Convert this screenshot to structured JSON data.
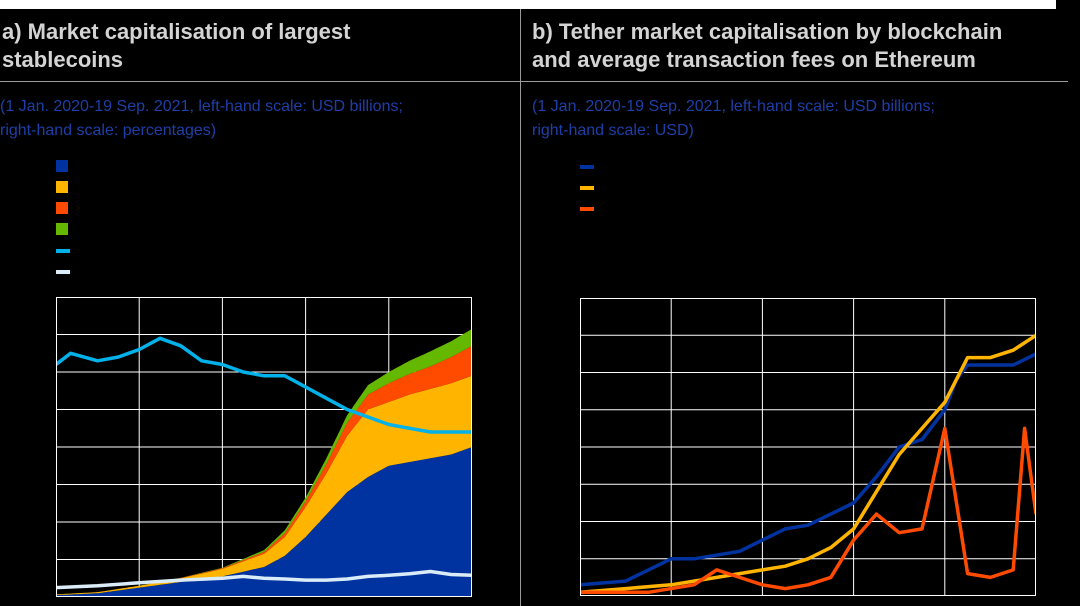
{
  "panels": [
    {
      "id": "a",
      "title_lines": [
        "a) Market capitalisation of largest",
        "stablecoins"
      ],
      "subtitle_lines": [
        "(1 Jan. 2020-19 Sep. 2021, left-hand scale: USD billions;",
        "right-hand scale: percentages)"
      ],
      "legend": [
        {
          "label": "",
          "color": "#0033a0",
          "style": "box"
        },
        {
          "label": "",
          "color": "#ffb400",
          "style": "box"
        },
        {
          "label": "",
          "color": "#ff4b00",
          "style": "box"
        },
        {
          "label": "",
          "color": "#65b800",
          "style": "box"
        },
        {
          "label": "",
          "color": "#00b1ea",
          "style": "line"
        },
        {
          "label": "",
          "color": "#d9ecf7",
          "style": "line"
        }
      ]
    },
    {
      "id": "b",
      "title_lines": [
        "b) Tether market capitalisation by blockchain",
        "and average transaction fees on Ethereum"
      ],
      "subtitle_lines": [
        "(1 Jan. 2020-19 Sep. 2021, left-hand scale: USD billions;",
        "right-hand scale: USD)"
      ],
      "legend": [
        {
          "label": "",
          "color": "#0033a0",
          "style": "line"
        },
        {
          "label": "",
          "color": "#ffb400",
          "style": "line"
        },
        {
          "label": "",
          "color": "#ff4b00",
          "style": "line"
        }
      ]
    }
  ],
  "chart_data": [
    {
      "panel": "a",
      "type": "area",
      "x_range": [
        0,
        20
      ],
      "x_unit": "months since Jan 2020",
      "y_units": "normalized 0-8 grid units",
      "ylim": [
        0,
        8
      ],
      "x_gridlines": [
        0,
        4,
        8,
        12,
        16,
        20
      ],
      "y_gridlines": [
        0,
        1,
        2,
        3,
        4,
        5,
        6,
        7,
        8
      ],
      "stacked_series": [
        {
          "color": "#0033a0",
          "points": [
            [
              0,
              0.05
            ],
            [
              2,
              0.1
            ],
            [
              4,
              0.25
            ],
            [
              6,
              0.4
            ],
            [
              8,
              0.55
            ],
            [
              10,
              0.8
            ],
            [
              11,
              1.1
            ],
            [
              12,
              1.6
            ],
            [
              13,
              2.2
            ],
            [
              14,
              2.8
            ],
            [
              15,
              3.2
            ],
            [
              16,
              3.5
            ],
            [
              17,
              3.6
            ],
            [
              18,
              3.7
            ],
            [
              19,
              3.8
            ],
            [
              20,
              4.0
            ]
          ]
        },
        {
          "color": "#ffb400",
          "points": [
            [
              0,
              0.02
            ],
            [
              2,
              0.03
            ],
            [
              4,
              0.05
            ],
            [
              6,
              0.1
            ],
            [
              8,
              0.2
            ],
            [
              10,
              0.35
            ],
            [
              11,
              0.5
            ],
            [
              12,
              0.8
            ],
            [
              13,
              1.1
            ],
            [
              14,
              1.5
            ],
            [
              15,
              1.8
            ],
            [
              16,
              1.7
            ],
            [
              17,
              1.8
            ],
            [
              18,
              1.85
            ],
            [
              19,
              1.9
            ],
            [
              20,
              1.9
            ]
          ]
        },
        {
          "color": "#ff4b00",
          "points": [
            [
              0,
              0
            ],
            [
              4,
              0
            ],
            [
              8,
              0.02
            ],
            [
              10,
              0.05
            ],
            [
              11,
              0.1
            ],
            [
              12,
              0.15
            ],
            [
              13,
              0.25
            ],
            [
              14,
              0.35
            ],
            [
              15,
              0.4
            ],
            [
              16,
              0.5
            ],
            [
              17,
              0.55
            ],
            [
              18,
              0.6
            ],
            [
              19,
              0.7
            ],
            [
              20,
              0.8
            ]
          ]
        },
        {
          "color": "#65b800",
          "points": [
            [
              0,
              0
            ],
            [
              4,
              0
            ],
            [
              8,
              0.01
            ],
            [
              10,
              0.05
            ],
            [
              11,
              0.08
            ],
            [
              12,
              0.1
            ],
            [
              13,
              0.15
            ],
            [
              14,
              0.2
            ],
            [
              15,
              0.25
            ],
            [
              16,
              0.3
            ],
            [
              17,
              0.35
            ],
            [
              18,
              0.4
            ],
            [
              19,
              0.42
            ],
            [
              20,
              0.45
            ]
          ]
        }
      ],
      "line_series": [
        {
          "color": "#00b1ea",
          "points": [
            [
              0,
              6.2
            ],
            [
              0.7,
              6.5
            ],
            [
              2,
              6.3
            ],
            [
              3,
              6.4
            ],
            [
              4,
              6.6
            ],
            [
              5,
              6.9
            ],
            [
              6,
              6.7
            ],
            [
              7,
              6.3
            ],
            [
              8,
              6.2
            ],
            [
              9,
              6.0
            ],
            [
              10,
              5.9
            ],
            [
              11,
              5.9
            ],
            [
              12,
              5.6
            ],
            [
              13,
              5.3
            ],
            [
              14,
              5.0
            ],
            [
              15,
              4.8
            ],
            [
              16,
              4.6
            ],
            [
              17,
              4.5
            ],
            [
              18,
              4.4
            ],
            [
              19,
              4.4
            ],
            [
              20,
              4.4
            ]
          ]
        },
        {
          "color": "#d9ecf7",
          "points": [
            [
              0,
              0.25
            ],
            [
              2,
              0.3
            ],
            [
              4,
              0.38
            ],
            [
              6,
              0.45
            ],
            [
              8,
              0.5
            ],
            [
              9,
              0.55
            ],
            [
              10,
              0.5
            ],
            [
              11,
              0.48
            ],
            [
              12,
              0.45
            ],
            [
              13,
              0.45
            ],
            [
              14,
              0.48
            ],
            [
              15,
              0.55
            ],
            [
              16,
              0.58
            ],
            [
              17,
              0.62
            ],
            [
              18,
              0.68
            ],
            [
              19,
              0.6
            ],
            [
              20,
              0.58
            ]
          ]
        }
      ]
    },
    {
      "panel": "b",
      "type": "line",
      "x_range": [
        0,
        20
      ],
      "x_unit": "months since Jan 2020",
      "y_units": "normalized 0-8 grid units",
      "ylim": [
        0,
        8
      ],
      "x_gridlines": [
        0,
        4,
        8,
        12,
        16,
        20
      ],
      "y_gridlines": [
        0,
        1,
        2,
        3,
        4,
        5,
        6,
        7,
        8
      ],
      "series": [
        {
          "color": "#0033a0",
          "points": [
            [
              0,
              0.3
            ],
            [
              2,
              0.4
            ],
            [
              3,
              0.7
            ],
            [
              4,
              1.0
            ],
            [
              5,
              1.0
            ],
            [
              7,
              1.2
            ],
            [
              8,
              1.5
            ],
            [
              9,
              1.8
            ],
            [
              10,
              1.9
            ],
            [
              11,
              2.2
            ],
            [
              12,
              2.5
            ],
            [
              13,
              3.2
            ],
            [
              14,
              4.0
            ],
            [
              15,
              4.2
            ],
            [
              16,
              5.0
            ],
            [
              16.5,
              5.8
            ],
            [
              17,
              6.2
            ],
            [
              18,
              6.2
            ],
            [
              19,
              6.2
            ],
            [
              20,
              6.5
            ]
          ]
        },
        {
          "color": "#ffb400",
          "points": [
            [
              0,
              0.1
            ],
            [
              2,
              0.2
            ],
            [
              4,
              0.3
            ],
            [
              6,
              0.5
            ],
            [
              8,
              0.7
            ],
            [
              9,
              0.8
            ],
            [
              10,
              1.0
            ],
            [
              11,
              1.3
            ],
            [
              12,
              1.8
            ],
            [
              13,
              2.8
            ],
            [
              14,
              3.8
            ],
            [
              15,
              4.5
            ],
            [
              16,
              5.2
            ],
            [
              17,
              6.4
            ],
            [
              18,
              6.4
            ],
            [
              19,
              6.6
            ],
            [
              20,
              7.0
            ]
          ]
        },
        {
          "color": "#ff4b00",
          "points": [
            [
              0,
              0.1
            ],
            [
              3,
              0.1
            ],
            [
              5,
              0.3
            ],
            [
              6,
              0.7
            ],
            [
              7,
              0.5
            ],
            [
              8,
              0.3
            ],
            [
              9,
              0.2
            ],
            [
              10,
              0.3
            ],
            [
              11,
              0.5
            ],
            [
              12,
              1.5
            ],
            [
              13,
              2.2
            ],
            [
              14,
              1.7
            ],
            [
              15,
              1.8
            ],
            [
              16,
              4.5
            ],
            [
              17,
              0.6
            ],
            [
              18,
              0.5
            ],
            [
              19,
              0.7
            ],
            [
              19.5,
              4.5
            ],
            [
              20,
              2.2
            ]
          ]
        }
      ]
    }
  ]
}
